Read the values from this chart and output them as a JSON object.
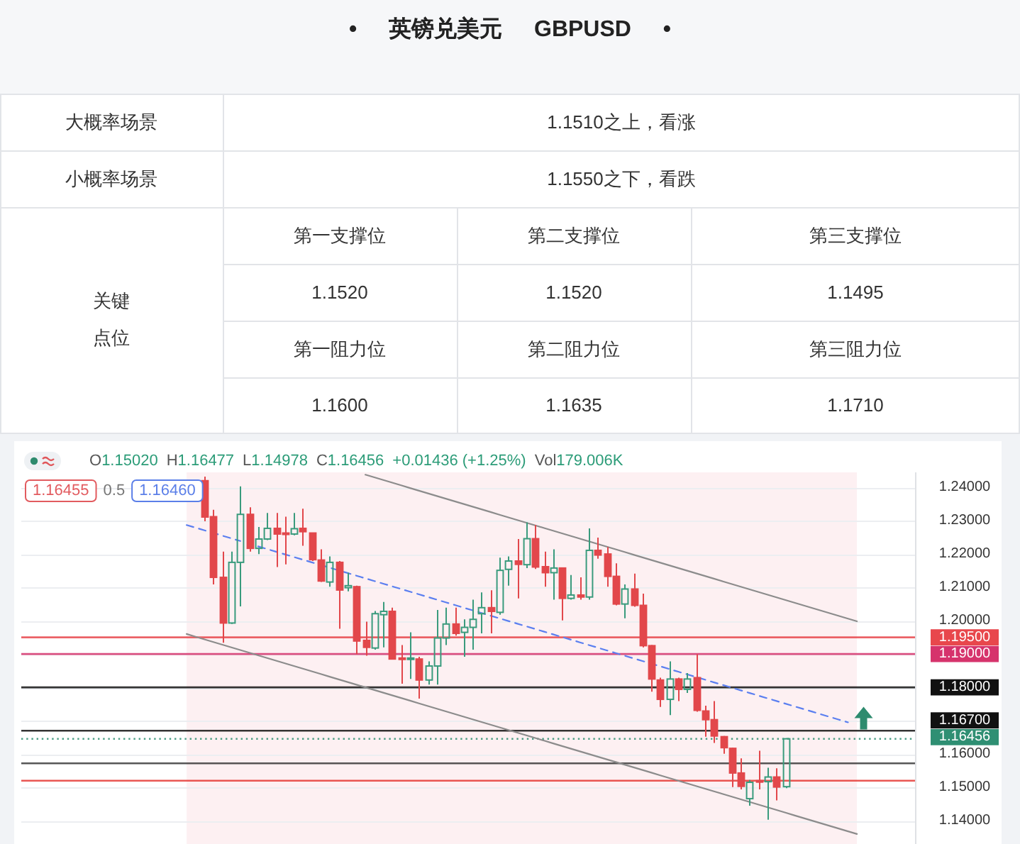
{
  "chart_data": [
    {
      "type": "other",
      "title": "• 英镑兑美元 GBPUSD •",
      "annotations": [
        "大概率场景",
        "1.1510之上，看涨",
        "小概率场景",
        "1.1550之下，看跌",
        "关键",
        "点位",
        "第一支撑位",
        "第二支撑位",
        "第三支撑位",
        "1.1520",
        "1.1520",
        "1.1495",
        "第一阻力位",
        "第二阻力位",
        "第三阻力位",
        "1.1600",
        "1.1635",
        "1.1710"
      ]
    },
    {
      "type": "candlestick",
      "categories": [
        null,
        null,
        null,
        null,
        null,
        null,
        null,
        null,
        null,
        null,
        null,
        null,
        null,
        null,
        null,
        null,
        null,
        null,
        null,
        null,
        null,
        null,
        null,
        null,
        null,
        null,
        null,
        null,
        null,
        null,
        null,
        null,
        null,
        null,
        null,
        null,
        null,
        null,
        null,
        null,
        null,
        null,
        null,
        null,
        null,
        null,
        null,
        null,
        null,
        null,
        null,
        null,
        null,
        null,
        null,
        null,
        null,
        null,
        null,
        null,
        null,
        null,
        null,
        null,
        null,
        null,
        null,
        null,
        null,
        null,
        null,
        null,
        null,
        null,
        null,
        null,
        null,
        null,
        null,
        null,
        null,
        null,
        null,
        null,
        null,
        null,
        null,
        null,
        null,
        null,
        null,
        null,
        null,
        null,
        null,
        null,
        null,
        null,
        null,
        null
      ],
      "ohlc": [
        null,
        null,
        null,
        null,
        null,
        null,
        null,
        null,
        null,
        null,
        null,
        null,
        null,
        null,
        null,
        null,
        null,
        null,
        null,
        null,
        [
          1.242,
          1.2432,
          1.2298,
          1.2311
        ],
        [
          1.2312,
          1.2333,
          1.2109,
          1.213
        ],
        [
          1.213,
          1.2207,
          1.1934,
          1.1993
        ],
        [
          1.1993,
          1.2207,
          1.199,
          1.2175
        ],
        [
          1.2175,
          1.2403,
          1.2043,
          1.2319
        ],
        [
          1.2319,
          1.234,
          1.2207,
          1.2217
        ],
        [
          1.2217,
          1.2281,
          1.22,
          1.2245
        ],
        [
          1.2245,
          1.2323,
          1.2242,
          1.2277
        ],
        [
          1.2277,
          1.2323,
          1.2161,
          1.226
        ],
        [
          1.2263,
          1.2312,
          1.2169,
          1.2259
        ],
        [
          1.226,
          1.2323,
          1.2256,
          1.2276
        ],
        [
          1.2277,
          1.2336,
          1.2225,
          1.2267
        ],
        [
          1.2263,
          1.2263,
          1.2179,
          1.2183
        ],
        [
          1.2182,
          1.2214,
          1.2116,
          1.2119
        ],
        [
          1.2116,
          1.2193,
          1.2102,
          1.2175
        ],
        [
          1.2175,
          1.2179,
          1.1976,
          1.2092
        ],
        [
          1.2099,
          1.2144,
          1.2088,
          1.2105
        ],
        [
          1.2102,
          1.2105,
          1.1899,
          1.1939
        ],
        [
          1.1941,
          1.1997,
          1.1895,
          1.192
        ],
        [
          1.1918,
          1.2029,
          1.1913,
          1.2021
        ],
        [
          1.2018,
          1.2056,
          1.192,
          1.2028
        ],
        [
          1.2028,
          1.2039,
          1.1883,
          1.1885
        ],
        [
          1.1888,
          1.1927,
          1.1811,
          1.1885
        ],
        [
          1.1885,
          1.1965,
          1.1825,
          1.1888
        ],
        [
          1.1885,
          1.1892,
          1.1766,
          1.1822
        ],
        [
          1.1822,
          1.1878,
          1.1808,
          1.1864
        ],
        [
          1.1864,
          1.2032,
          1.1808,
          1.1948
        ],
        [
          1.1948,
          1.2039,
          1.1927,
          1.199
        ],
        [
          1.199,
          1.2039,
          1.1955,
          1.1962
        ],
        [
          1.1965,
          1.2004,
          1.1892,
          1.198
        ],
        [
          1.198,
          1.2063,
          1.1913,
          1.2004
        ],
        [
          1.2021,
          1.2085,
          1.1962,
          1.2039
        ],
        [
          1.2039,
          1.2091,
          1.1962,
          1.2028
        ],
        [
          1.2025,
          1.2189,
          1.2018,
          1.2151
        ],
        [
          1.2154,
          1.2193,
          1.2105,
          1.2179
        ],
        [
          1.2179,
          1.2245,
          1.2067,
          1.2169
        ],
        [
          1.2168,
          1.2295,
          1.2158,
          1.2246
        ],
        [
          1.2246,
          1.2287,
          1.2155,
          1.2161
        ],
        [
          1.2162,
          1.2207,
          1.2102,
          1.2144
        ],
        [
          1.2144,
          1.2214,
          1.2063,
          1.2158
        ],
        [
          1.2158,
          1.2158,
          1.2001,
          1.2067
        ],
        [
          1.2067,
          1.2137,
          1.2063,
          1.2077
        ],
        [
          1.2077,
          1.213,
          1.2063,
          1.2071
        ],
        [
          1.2071,
          1.2277,
          1.2063,
          1.2211
        ],
        [
          1.2211,
          1.2249,
          1.2186,
          1.2197
        ],
        [
          1.22,
          1.2221,
          1.2102,
          1.2133
        ],
        [
          1.2133,
          1.2172,
          1.2046,
          1.205
        ],
        [
          1.205,
          1.2109,
          1.2007,
          1.2095
        ],
        [
          1.2095,
          1.2141,
          1.2042,
          1.2046
        ],
        [
          1.2046,
          1.2081,
          1.192,
          1.1925
        ],
        [
          1.1925,
          1.1927,
          1.1787,
          1.1825
        ],
        [
          1.1822,
          1.1829,
          1.1741,
          1.1764
        ],
        [
          1.1764,
          1.1878,
          1.1717,
          1.1825
        ],
        [
          1.1825,
          1.1829,
          1.1759,
          1.1794
        ],
        [
          1.1794,
          1.1843,
          1.1783,
          1.1825
        ],
        [
          1.1829,
          1.1899,
          1.1727,
          1.1731
        ],
        [
          1.1729,
          1.1745,
          1.1652,
          1.1703
        ],
        [
          1.1703,
          1.1759,
          1.1633,
          1.1654
        ],
        [
          1.1652,
          1.1654,
          1.1601,
          1.1619
        ],
        [
          1.1617,
          1.1619,
          1.1501,
          1.1543
        ],
        [
          1.1543,
          1.1587,
          1.1494,
          1.1503
        ],
        [
          1.1466,
          1.1522,
          1.1445,
          1.1515
        ],
        [
          1.152,
          1.161,
          1.1494,
          1.1516
        ],
        [
          1.1517,
          1.1559,
          1.1403,
          1.1531
        ],
        [
          1.1531,
          1.1557,
          1.1461,
          1.1501
        ],
        [
          1.1502,
          1.16477,
          1.14978,
          1.16456
        ],
        null,
        null,
        null,
        null,
        null,
        null,
        null,
        null,
        null,
        null,
        null,
        null,
        null,
        null
      ],
      "colors": [
        null,
        null,
        null,
        null,
        null,
        null,
        null,
        null,
        null,
        null,
        null,
        null,
        null,
        null,
        null,
        null,
        null,
        null,
        null,
        null,
        "#e2474b",
        "#e2474b",
        "#e2474b",
        "#3a9b7d",
        "#3a9b7d",
        "#e2474b",
        "#3a9b7d",
        "#3a9b7d",
        "#e2474b",
        "#e2474b",
        "#3a9b7d",
        "#e2474b",
        "#e2474b",
        "#e2474b",
        "#3a9b7d",
        "#e2474b",
        "#3a9b7d",
        "#e2474b",
        "#e2474b",
        "#3a9b7d",
        "#3a9b7d",
        "#e2474b",
        "#e2474b",
        "#3a9b7d",
        "#e2474b",
        "#3a9b7d",
        "#3a9b7d",
        "#3a9b7d",
        "#e2474b",
        "#3a9b7d",
        "#3a9b7d",
        "#3a9b7d",
        "#e2474b",
        "#3a9b7d",
        "#3a9b7d",
        "#e2474b",
        "#3a9b7d",
        "#e2474b",
        "#e2474b",
        "#3a9b7d",
        "#e2474b",
        "#3a9b7d",
        "#e2474b",
        "#3a9b7d",
        "#e2474b",
        "#e2474b",
        "#e2474b",
        "#3a9b7d",
        "#e2474b",
        "#e2474b",
        "#e2474b",
        "#e2474b",
        "#3a9b7d",
        "#e2474b",
        "#3a9b7d",
        "#e2474b",
        "#e2474b",
        "#e2474b",
        "#e2474b",
        "#e2474b",
        "#e2474b",
        "#3a9b7d",
        "#e2474b",
        "#3a9b7d",
        "#e2474b",
        "#3a9b7d",
        null,
        null,
        null,
        null,
        null,
        null,
        null,
        null,
        null,
        null,
        null,
        null,
        null,
        null
      ],
      "series": [
        {
          "type": "line",
          "color": "#8c8c8c",
          "values": [
            null,
            null,
            null,
            null,
            null,
            null,
            null,
            null,
            null,
            null,
            null,
            null,
            null,
            null,
            null,
            null,
            null,
            null,
            null,
            null,
            null,
            null,
            null,
            null,
            null,
            null,
            null,
            null,
            null,
            null,
            null,
            null,
            null,
            null,
            null,
            null,
            null,
            null,
            1.2438,
            1.243,
            1.2422,
            1.2414,
            1.2406,
            1.2398,
            1.239,
            1.2382,
            1.2374,
            1.2366,
            1.2358,
            1.235,
            1.2342,
            1.2334,
            1.2326,
            1.2318,
            1.231,
            1.2302,
            1.2294,
            1.2286,
            1.2278,
            1.227,
            1.2262,
            1.2254,
            1.2246,
            1.2238,
            1.223,
            1.2222,
            1.2214,
            1.2206,
            1.2198,
            1.219,
            1.2182,
            1.2174,
            1.2166,
            1.2158,
            1.215,
            1.2142,
            1.2134,
            1.2126,
            1.2118,
            1.211,
            1.2102,
            1.2094,
            1.2086,
            1.2078,
            1.207,
            1.2062,
            1.2054,
            1.2046,
            1.2038,
            1.203,
            1.2022,
            1.2014,
            1.2006,
            1.1998,
            null,
            null,
            null,
            null,
            null,
            null
          ]
        },
        {
          "type": "line",
          "color": "#5b7ff0",
          "line_style": "dashed",
          "values": [
            null,
            null,
            null,
            null,
            null,
            null,
            null,
            null,
            null,
            null,
            null,
            null,
            null,
            null,
            null,
            null,
            null,
            null,
            1.2287,
            1.2279,
            1.2271,
            1.2263,
            1.2255,
            1.2247,
            1.2239,
            null,
            1.2223,
            1.2215,
            1.2207,
            1.2199,
            1.2191,
            1.2183,
            1.2175,
            1.2167,
            1.2159,
            1.2151,
            1.2143,
            1.2135,
            1.2127,
            1.2119,
            1.2111,
            1.2103,
            1.2095,
            1.2087,
            1.2079,
            1.2071,
            1.2063,
            1.2055,
            1.2047,
            1.2039,
            1.2031,
            1.2023,
            1.2015,
            1.2007,
            1.1999,
            1.1991,
            1.1983,
            1.1975,
            1.1967,
            1.1959,
            1.1951,
            1.1943,
            1.1935,
            1.1927,
            1.1919,
            1.1911,
            1.1903,
            1.1895,
            1.1887,
            1.1879,
            1.1871,
            1.1863,
            1.1855,
            1.1847,
            1.1839,
            1.1831,
            1.1823,
            1.1815,
            1.1807,
            1.1799,
            1.1791,
            1.1783,
            1.1775,
            1.1767,
            1.1759,
            1.1751,
            1.1743,
            1.1735,
            1.1727,
            1.1719,
            1.1711,
            1.1703,
            1.1695,
            null,
            null,
            null,
            null,
            null,
            null,
            null
          ]
        },
        {
          "type": "line",
          "color": "#8c8c8c",
          "values": [
            null,
            null,
            null,
            null,
            null,
            null,
            null,
            null,
            null,
            null,
            null,
            null,
            null,
            null,
            null,
            null,
            null,
            null,
            1.196,
            1.1952,
            1.1944,
            1.1936,
            1.1928,
            1.192,
            1.1912,
            1.1904,
            1.1896,
            1.1888,
            1.188,
            1.1872,
            1.1864,
            1.1856,
            1.1848,
            1.184,
            1.1832,
            1.1824,
            1.1816,
            1.1808,
            1.18,
            1.1792,
            1.1784,
            1.1776,
            1.1768,
            1.176,
            1.1752,
            1.1744,
            1.1736,
            1.1728,
            1.172,
            1.1712,
            1.1704,
            1.1696,
            1.1688,
            1.168,
            1.1672,
            1.1664,
            1.1656,
            1.1648,
            1.164,
            1.1632,
            1.1624,
            1.1616,
            1.1608,
            1.16,
            1.1592,
            1.1584,
            1.1576,
            1.1568,
            1.156,
            1.1552,
            1.1544,
            1.1536,
            1.1528,
            1.152,
            1.1512,
            1.1504,
            1.1496,
            1.1488,
            1.148,
            1.1472,
            1.1464,
            1.1456,
            1.1448,
            1.144,
            1.1432,
            1.1424,
            1.1416,
            1.1408,
            1.14,
            1.1392,
            1.1384,
            1.1376,
            1.1368,
            1.136,
            null,
            null,
            null,
            null,
            null,
            null
          ]
        }
      ],
      "ylim": [
        1.133,
        1.2445
      ],
      "yticks": [
        {
          "value": 1.14,
          "label": "1.14000"
        },
        {
          "value": 1.15,
          "label": "1.15000"
        },
        {
          "value": 1.16,
          "label": "1.16000"
        },
        {
          "value": 1.17,
          "label": null
        },
        {
          "value": 1.18,
          "label": null
        },
        {
          "value": 1.19,
          "label": null
        },
        {
          "value": 1.2,
          "label": "1.20000"
        },
        {
          "value": 1.21,
          "label": "1.21000"
        },
        {
          "value": 1.22,
          "label": "1.22000"
        },
        {
          "value": 1.23,
          "label": "1.23000"
        },
        {
          "value": 1.24,
          "label": "1.24000"
        }
      ],
      "ref_lines": [
        {
          "axis": "y",
          "value": 1.195,
          "label": "1.19500",
          "color": "#e8474c"
        },
        {
          "axis": "y",
          "value": 1.19,
          "label": "1.19000",
          "color": "#d6336c"
        },
        {
          "axis": "y",
          "value": 1.18,
          "label": "1.18000",
          "color": "#111111"
        },
        {
          "axis": "y",
          "value": 1.167,
          "label": "1.16700",
          "color": "#111111"
        },
        {
          "axis": "y",
          "value": 1.16456,
          "label": "1.16456",
          "color": "#2f8f73",
          "line_style": "dotted"
        },
        {
          "axis": "y",
          "value": 1.1572,
          "color": "#3a3a3a"
        },
        {
          "axis": "y",
          "value": 1.152,
          "color": "#e53935"
        }
      ],
      "annotations": [
        "O1.15020",
        "H1.16477",
        "L1.14978",
        "C1.16456",
        "+0.01436 (+1.25%)",
        "Vol179.006K",
        "1.16455",
        "0.5",
        "1.16460"
      ],
      "grid": "y",
      "tick_labels": "y"
    }
  ]
}
